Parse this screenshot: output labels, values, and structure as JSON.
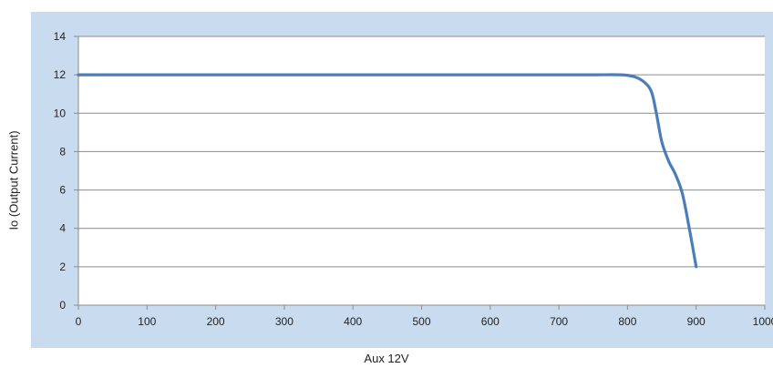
{
  "chart_data": {
    "type": "line",
    "title": "",
    "xlabel": "Aux 12V",
    "ylabel": "Io (Output Current)",
    "xlim": [
      0,
      1000
    ],
    "ylim": [
      0,
      14
    ],
    "xticks": [
      0,
      100,
      200,
      300,
      400,
      500,
      600,
      700,
      800,
      900,
      1000
    ],
    "yticks": [
      0,
      2,
      4,
      6,
      8,
      10,
      12,
      14
    ],
    "grid": true,
    "legend": "none",
    "series": [
      {
        "color": "#4a7ebb",
        "x": [
          0,
          100,
          200,
          300,
          400,
          500,
          600,
          700,
          750,
          790,
          810,
          825,
          835,
          842,
          850,
          860,
          870,
          880,
          890,
          900
        ],
        "y": [
          12,
          12,
          12,
          12,
          12,
          12,
          12,
          12,
          12,
          12,
          11.9,
          11.6,
          11.1,
          10,
          8.5,
          7.5,
          6.8,
          5.8,
          4,
          2
        ]
      }
    ]
  }
}
